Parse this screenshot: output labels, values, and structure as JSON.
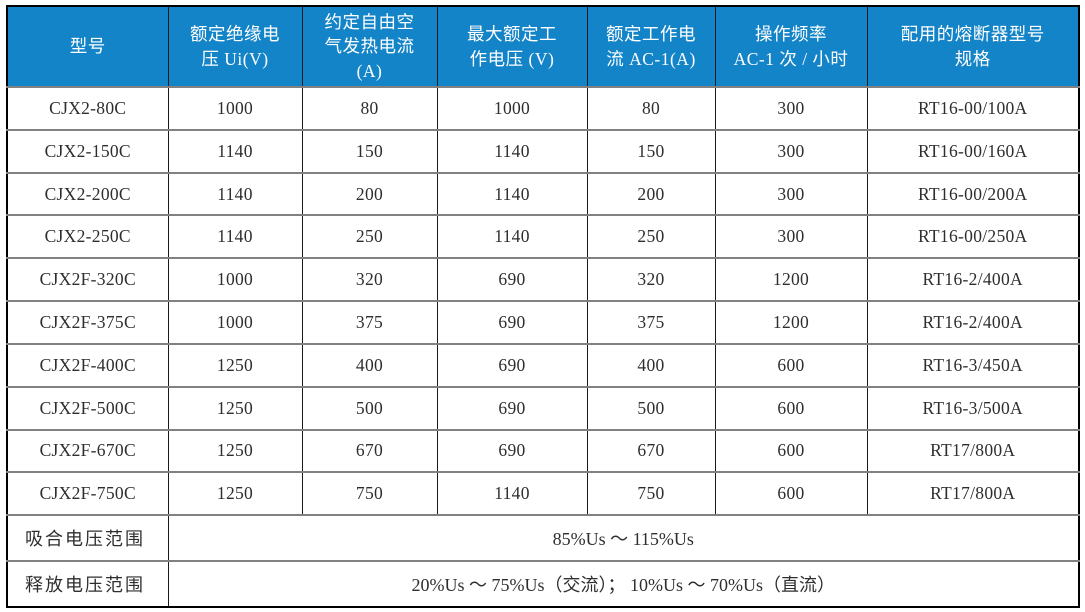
{
  "colors": {
    "page_bg": "#ffffff",
    "header_bg": "#1484c8",
    "header_text": "#ffffff",
    "body_text": "#2e2e2e",
    "grid_horizontal": "#818181",
    "grid_vertical": "#1a1a1a",
    "outer_border": "#000000"
  },
  "table": {
    "columns": [
      {
        "label": "型号"
      },
      {
        "label": "额定绝缘电\n压 Ui(V)"
      },
      {
        "label": "约定自由空\n气发热电流\n(A)"
      },
      {
        "label": "最大额定工\n作电压 (V)"
      },
      {
        "label": "额定工作电\n流 AC-1(A)"
      },
      {
        "label": "操作频率\nAC-1 次 / 小时"
      },
      {
        "label": "配用的熔断器型号\n规格"
      }
    ],
    "rows": [
      [
        "CJX2-80C",
        "1000",
        "80",
        "1000",
        "80",
        "300",
        "RT16-00/100A"
      ],
      [
        "CJX2-150C",
        "1140",
        "150",
        "1140",
        "150",
        "300",
        "RT16-00/160A"
      ],
      [
        "CJX2-200C",
        "1140",
        "200",
        "1140",
        "200",
        "300",
        "RT16-00/200A"
      ],
      [
        "CJX2-250C",
        "1140",
        "250",
        "1140",
        "250",
        "300",
        "RT16-00/250A"
      ],
      [
        "CJX2F-320C",
        "1000",
        "320",
        "690",
        "320",
        "1200",
        "RT16-2/400A"
      ],
      [
        "CJX2F-375C",
        "1000",
        "375",
        "690",
        "375",
        "1200",
        "RT16-2/400A"
      ],
      [
        "CJX2F-400C",
        "1250",
        "400",
        "690",
        "400",
        "600",
        "RT16-3/450A"
      ],
      [
        "CJX2F-500C",
        "1250",
        "500",
        "690",
        "500",
        "600",
        "RT16-3/500A"
      ],
      [
        "CJX2F-670C",
        "1250",
        "670",
        "690",
        "670",
        "600",
        "RT17/800A"
      ],
      [
        "CJX2F-750C",
        "1250",
        "750",
        "1140",
        "750",
        "600",
        "RT17/800A"
      ]
    ],
    "footer_rows": [
      {
        "label": "吸合电压范围",
        "value": "85%Us ～ 115%Us"
      },
      {
        "label": "释放电压范围",
        "value": "20%Us ～ 75%Us（交流）； 10%Us ～ 70%Us（直流）"
      }
    ]
  }
}
